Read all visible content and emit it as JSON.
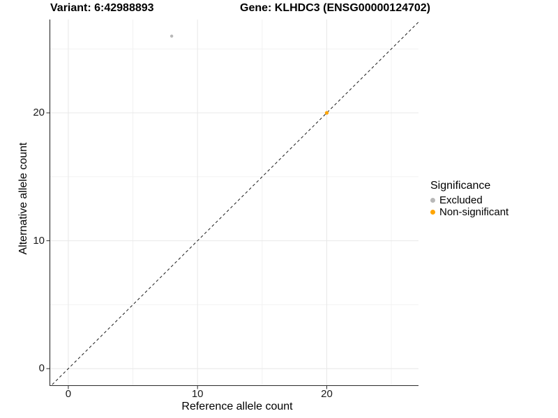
{
  "header": {
    "variant_title": "Variant: 6:42988893",
    "gene_title": "Gene: KLHDC3 (ENSG00000124702)"
  },
  "axes": {
    "x_label": "Reference allele count",
    "y_label": "Alternative allele count"
  },
  "legend": {
    "title": "Significance",
    "items": [
      {
        "label": "Excluded",
        "color": "#b8b8b8"
      },
      {
        "label": "Non-significant",
        "color": "#ffa500"
      }
    ]
  },
  "chart_data": {
    "type": "scatter",
    "title": "Variant: 6:42988893   Gene: KLHDC3 (ENSG00000124702)",
    "xlabel": "Reference allele count",
    "ylabel": "Alternative allele count",
    "xlim": [
      -1.4,
      27.1
    ],
    "ylim": [
      -1.3,
      27.3
    ],
    "xticks": [
      0,
      10,
      20
    ],
    "yticks": [
      0,
      10,
      20
    ],
    "xticks_minor": [
      5,
      15,
      25
    ],
    "yticks_minor": [
      5,
      15,
      25
    ],
    "grid": "major+minor",
    "legend_position": "right",
    "identity_line": {
      "type": "y=x",
      "style": "dashed",
      "color": "#1a1a1a"
    },
    "series": [
      {
        "name": "Excluded",
        "color": "#b8b8b8",
        "point_radius": 2.2,
        "points": [
          {
            "x": 8,
            "y": 26
          }
        ]
      },
      {
        "name": "Non-significant",
        "color": "#ffa500",
        "point_radius": 2.6,
        "points": [
          {
            "x": 20,
            "y": 20
          }
        ]
      }
    ]
  },
  "style": {
    "grid_major_color": "#e8e8e8",
    "grid_minor_color": "#f2f2f2",
    "axis_line_color": "#2a2a2a",
    "tick_color": "#2a2a2a",
    "background": "#ffffff"
  }
}
